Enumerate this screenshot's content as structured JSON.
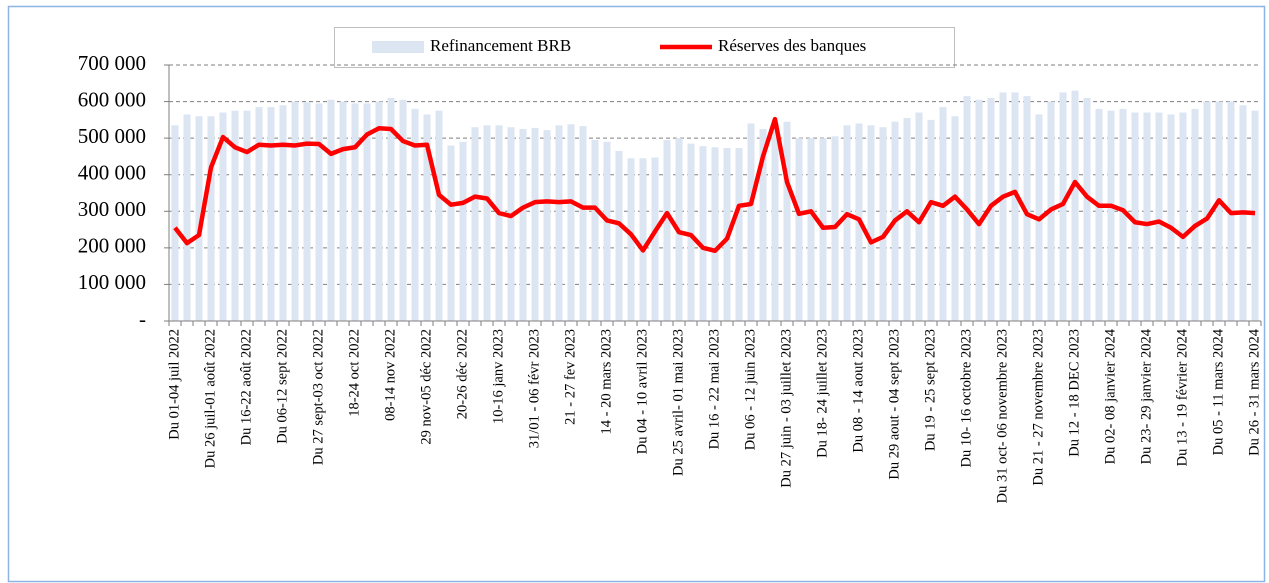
{
  "chart_data": {
    "type": "bar-line",
    "categories": [
      "Du 01-04 juil 2022",
      null,
      null,
      "Du 26 juil-01 août 2022",
      null,
      null,
      "Du 16-22 août 2022",
      null,
      null,
      "Du 06-12 sept 2022",
      null,
      null,
      "Du 27 sept-03 oct 2022",
      null,
      null,
      "18-24 oct 2022",
      null,
      null,
      "08-14 nov 2022",
      null,
      null,
      "29 nov-05 déc 2022",
      null,
      null,
      "20-26 déc 2022",
      null,
      null,
      "10-16 janv 2023",
      null,
      null,
      "31/01 - 06 févr 2023",
      null,
      null,
      "21 - 27 fev 2023",
      null,
      null,
      "14 - 20 mars 2023",
      null,
      null,
      "Du 04 - 10 avril 2023",
      null,
      null,
      "Du 25 avril- 01 mai 2023",
      null,
      null,
      "Du 16 - 22 mai 2023",
      null,
      null,
      "Du 06 - 12 juin 2023",
      null,
      null,
      "Du 27 juin - 03 juillet 2023",
      null,
      null,
      "Du 18- 24 juillet 2023",
      null,
      null,
      "Du 08 - 14 aout 2023",
      null,
      null,
      "Du 29 aout - 04 sept 2023",
      null,
      null,
      "Du 19 - 25 sept 2023",
      null,
      null,
      "Du 10- 16 octobre 2023",
      null,
      null,
      "Du 31 oct- 06 novembre 2023",
      null,
      null,
      "Du 21 - 27 novembre 2023",
      null,
      null,
      "Du 12 - 18 DEC 2023",
      null,
      null,
      "Du 02- 08 janvier 2024",
      null,
      null,
      "Du 23- 29 janvier 2024",
      null,
      null,
      "Du 13 - 19 février 2024",
      null,
      null,
      "Du 05 - 11 mars 2024",
      null,
      null,
      "Du 26 - 31 mars 2024"
    ],
    "series": [
      {
        "name": "Refinancement BRB",
        "type": "bar",
        "color": "#dce6f2",
        "values": [
          535000,
          565000,
          560000,
          560000,
          570000,
          575000,
          575000,
          585000,
          585000,
          590000,
          600000,
          598000,
          595000,
          605000,
          600000,
          595000,
          595000,
          600000,
          610000,
          605000,
          580000,
          565000,
          575000,
          480000,
          490000,
          530000,
          535000,
          535000,
          530000,
          525000,
          528000,
          522000,
          535000,
          538000,
          533000,
          495000,
          490000,
          465000,
          445000,
          445000,
          447000,
          495000,
          500000,
          485000,
          478000,
          475000,
          473000,
          473000,
          540000,
          525000,
          540000,
          545000,
          500000,
          500000,
          500000,
          505000,
          535000,
          540000,
          535000,
          530000,
          545000,
          555000,
          570000,
          550000,
          585000,
          560000,
          615000,
          605000,
          610000,
          625000,
          625000,
          615000,
          565000,
          600000,
          625000,
          630000,
          610000,
          580000,
          575000,
          580000,
          570000,
          570000,
          570000,
          565000,
          570000,
          580000,
          600000,
          600000,
          600000,
          590000,
          575000
        ]
      },
      {
        "name": "Réserves des banques",
        "type": "line",
        "color": "#ff0000",
        "values": [
          255000,
          213000,
          235000,
          420000,
          503000,
          475000,
          462000,
          482000,
          480000,
          482000,
          480000,
          485000,
          484000,
          457000,
          470000,
          475000,
          510000,
          527000,
          525000,
          492000,
          480000,
          482000,
          345000,
          318000,
          323000,
          340000,
          335000,
          295000,
          287000,
          310000,
          325000,
          327000,
          325000,
          327000,
          310000,
          310000,
          275000,
          267000,
          237000,
          193000,
          245000,
          295000,
          243000,
          235000,
          200000,
          192000,
          225000,
          315000,
          320000,
          450000,
          552000,
          380000,
          293000,
          300000,
          255000,
          257000,
          292000,
          278000,
          215000,
          230000,
          275000,
          300000,
          270000,
          325000,
          315000,
          340000,
          305000,
          265000,
          315000,
          340000,
          353000,
          292000,
          278000,
          305000,
          320000,
          380000,
          340000,
          315000,
          315000,
          303000,
          270000,
          265000,
          272000,
          255000,
          230000,
          260000,
          280000,
          330000,
          295000,
          297000,
          295000
        ]
      }
    ],
    "ylim": [
      0,
      700000
    ],
    "yticks": [
      {
        "value": 0,
        "label": "-"
      },
      {
        "value": 100000,
        "label": "100 000"
      },
      {
        "value": 200000,
        "label": "200 000"
      },
      {
        "value": 300000,
        "label": "300 000"
      },
      {
        "value": 400000,
        "label": "400 000"
      },
      {
        "value": 500000,
        "label": "500 000"
      },
      {
        "value": 600000,
        "label": "600 000"
      },
      {
        "value": 700000,
        "label": "700 000"
      }
    ],
    "grid": true,
    "legend": "top"
  }
}
